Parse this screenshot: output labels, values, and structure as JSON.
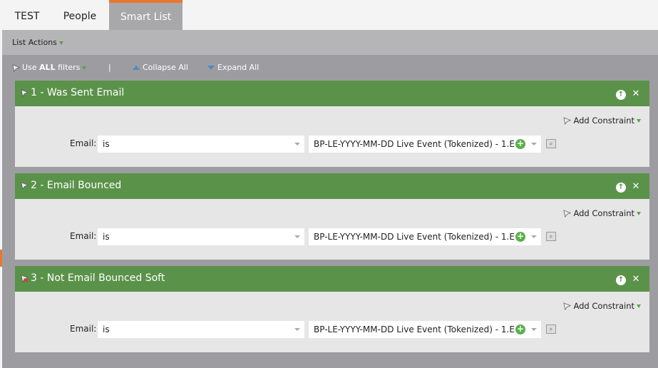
{
  "tabs": [
    {
      "label": "TEST"
    },
    {
      "label": "People"
    },
    {
      "label": "Smart List",
      "active": true
    }
  ],
  "list_actions": {
    "label": "List Actions"
  },
  "toolbar": {
    "use_prefix": "Use ",
    "use_bold": "ALL",
    "use_suffix": " filters",
    "separator": "|",
    "collapse": "Collapse All",
    "expand": "Expand All"
  },
  "colors": {
    "header_green": "#5b924a",
    "accent_orange": "#e8772e"
  },
  "filters": [
    {
      "title": "1 - Was Sent Email",
      "icon": "funnel-icon",
      "add_constraint": "Add Constraint",
      "field_label": "Email:",
      "operator": "is",
      "value": "BP-LE-YYYY-MM-DD Live Event (Tokenized) - 1.E"
    },
    {
      "title": "2 - Email Bounced",
      "icon": "funnel-icon",
      "add_constraint": "Add Constraint",
      "field_label": "Email:",
      "operator": "is",
      "value": "BP-LE-YYYY-MM-DD Live Event (Tokenized) - 1.E"
    },
    {
      "title": "3 - Not Email Bounced Soft",
      "icon": "funnel-negated-icon",
      "add_constraint": "Add Constraint",
      "field_label": "Email:",
      "operator": "is",
      "value": "BP-LE-YYYY-MM-DD Live Event (Tokenized) - 1.E"
    }
  ]
}
